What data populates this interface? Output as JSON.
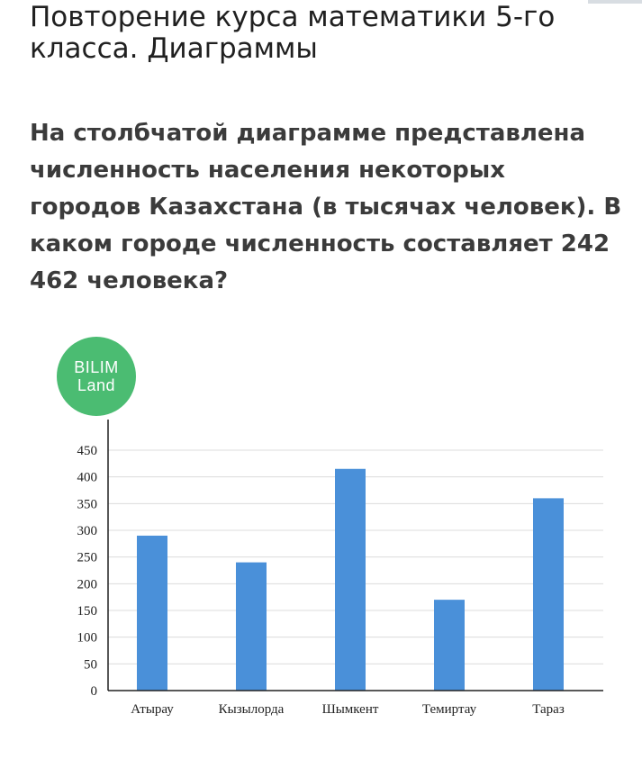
{
  "page": {
    "title": "Повторение курса математики 5-го класса. Диаграммы",
    "question": "На столбчатой диаграмме представлена численность населения некоторых городов Казахстана (в тысячах человек). В каком городе численность составляет 242 462 человека?"
  },
  "logo": {
    "line1": "BILIM",
    "line2": "Land"
  },
  "chart_data": {
    "type": "bar",
    "categories": [
      "Атырау",
      "Кызылорда",
      "Шымкент",
      "Темиртау",
      "Тараз"
    ],
    "values": [
      290,
      240,
      415,
      170,
      360
    ],
    "yticks": [
      0,
      50,
      100,
      150,
      200,
      250,
      300,
      350,
      400,
      450
    ],
    "ylim": [
      0,
      450
    ],
    "grid": true,
    "bar_color": "#4a90d9"
  }
}
